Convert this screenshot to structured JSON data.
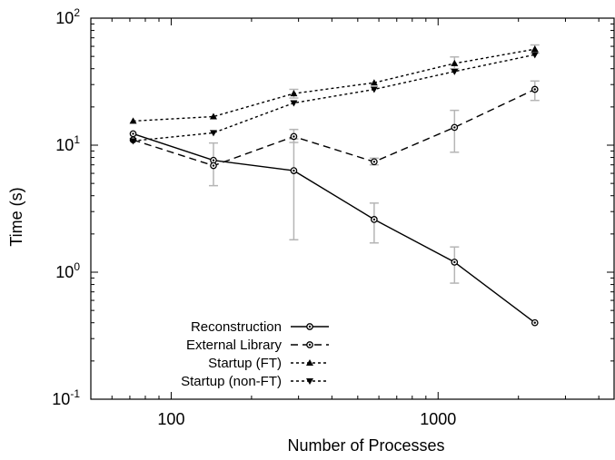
{
  "chart_data": {
    "type": "line",
    "title": "",
    "xlabel": "Number of Processes",
    "ylabel": "Time (s)",
    "xscale": "log",
    "yscale": "log",
    "xlim": [
      50,
      4600
    ],
    "ylim": [
      0.1,
      100
    ],
    "xticks": [
      {
        "value": 100,
        "label": "100"
      },
      {
        "value": 1000,
        "label": "1000"
      }
    ],
    "yticks": [
      {
        "value": 0.1,
        "base": "10",
        "exp": "-1"
      },
      {
        "value": 1,
        "base": "10",
        "exp": "0"
      },
      {
        "value": 10,
        "base": "10",
        "exp": "1"
      },
      {
        "value": 100,
        "base": "10",
        "exp": "2"
      }
    ],
    "grid": false,
    "legend_position": "bottom-left",
    "series": [
      {
        "name": "Reconstruction",
        "style": "solid",
        "marker": "circle",
        "x": [
          72,
          144,
          288,
          576,
          1152,
          2304
        ],
        "y": [
          12.3,
          7.6,
          6.3,
          2.6,
          1.2,
          0.4
        ],
        "err_low": [
          null,
          null,
          1.8,
          1.7,
          0.82,
          null
        ],
        "err_high": [
          null,
          null,
          11.2,
          3.5,
          1.58,
          0.95
        ]
      },
      {
        "name": "External Library",
        "style": "dashed",
        "marker": "circle",
        "x": [
          72,
          144,
          288,
          576,
          1152,
          2304
        ],
        "y": [
          11.0,
          6.9,
          11.7,
          7.4,
          13.8,
          27.5
        ],
        "err_low": [
          null,
          4.8,
          10.5,
          7.0,
          8.8,
          22.5
        ],
        "err_high": [
          null,
          10.4,
          13.3,
          7.9,
          18.8,
          32.0
        ]
      },
      {
        "name": "Startup (FT)",
        "style": "dotted",
        "marker": "triangle-up",
        "x": [
          72,
          144,
          288,
          576,
          1152,
          2304
        ],
        "y": [
          15.5,
          16.8,
          25.5,
          31.0,
          44.0,
          57.0
        ],
        "err_low": [
          null,
          null,
          23.5,
          null,
          40.0,
          53.0
        ],
        "err_high": [
          null,
          null,
          27.5,
          null,
          49.5,
          61.5
        ]
      },
      {
        "name": "Startup (non-FT)",
        "style": "dotted",
        "marker": "triangle-down",
        "x": [
          72,
          144,
          288,
          576,
          1152,
          2304
        ],
        "y": [
          10.8,
          12.5,
          21.5,
          27.5,
          38.0,
          51.5
        ],
        "err_low": [
          null,
          null,
          null,
          null,
          null,
          null
        ],
        "err_high": [
          null,
          null,
          null,
          null,
          null,
          null
        ]
      }
    ]
  }
}
